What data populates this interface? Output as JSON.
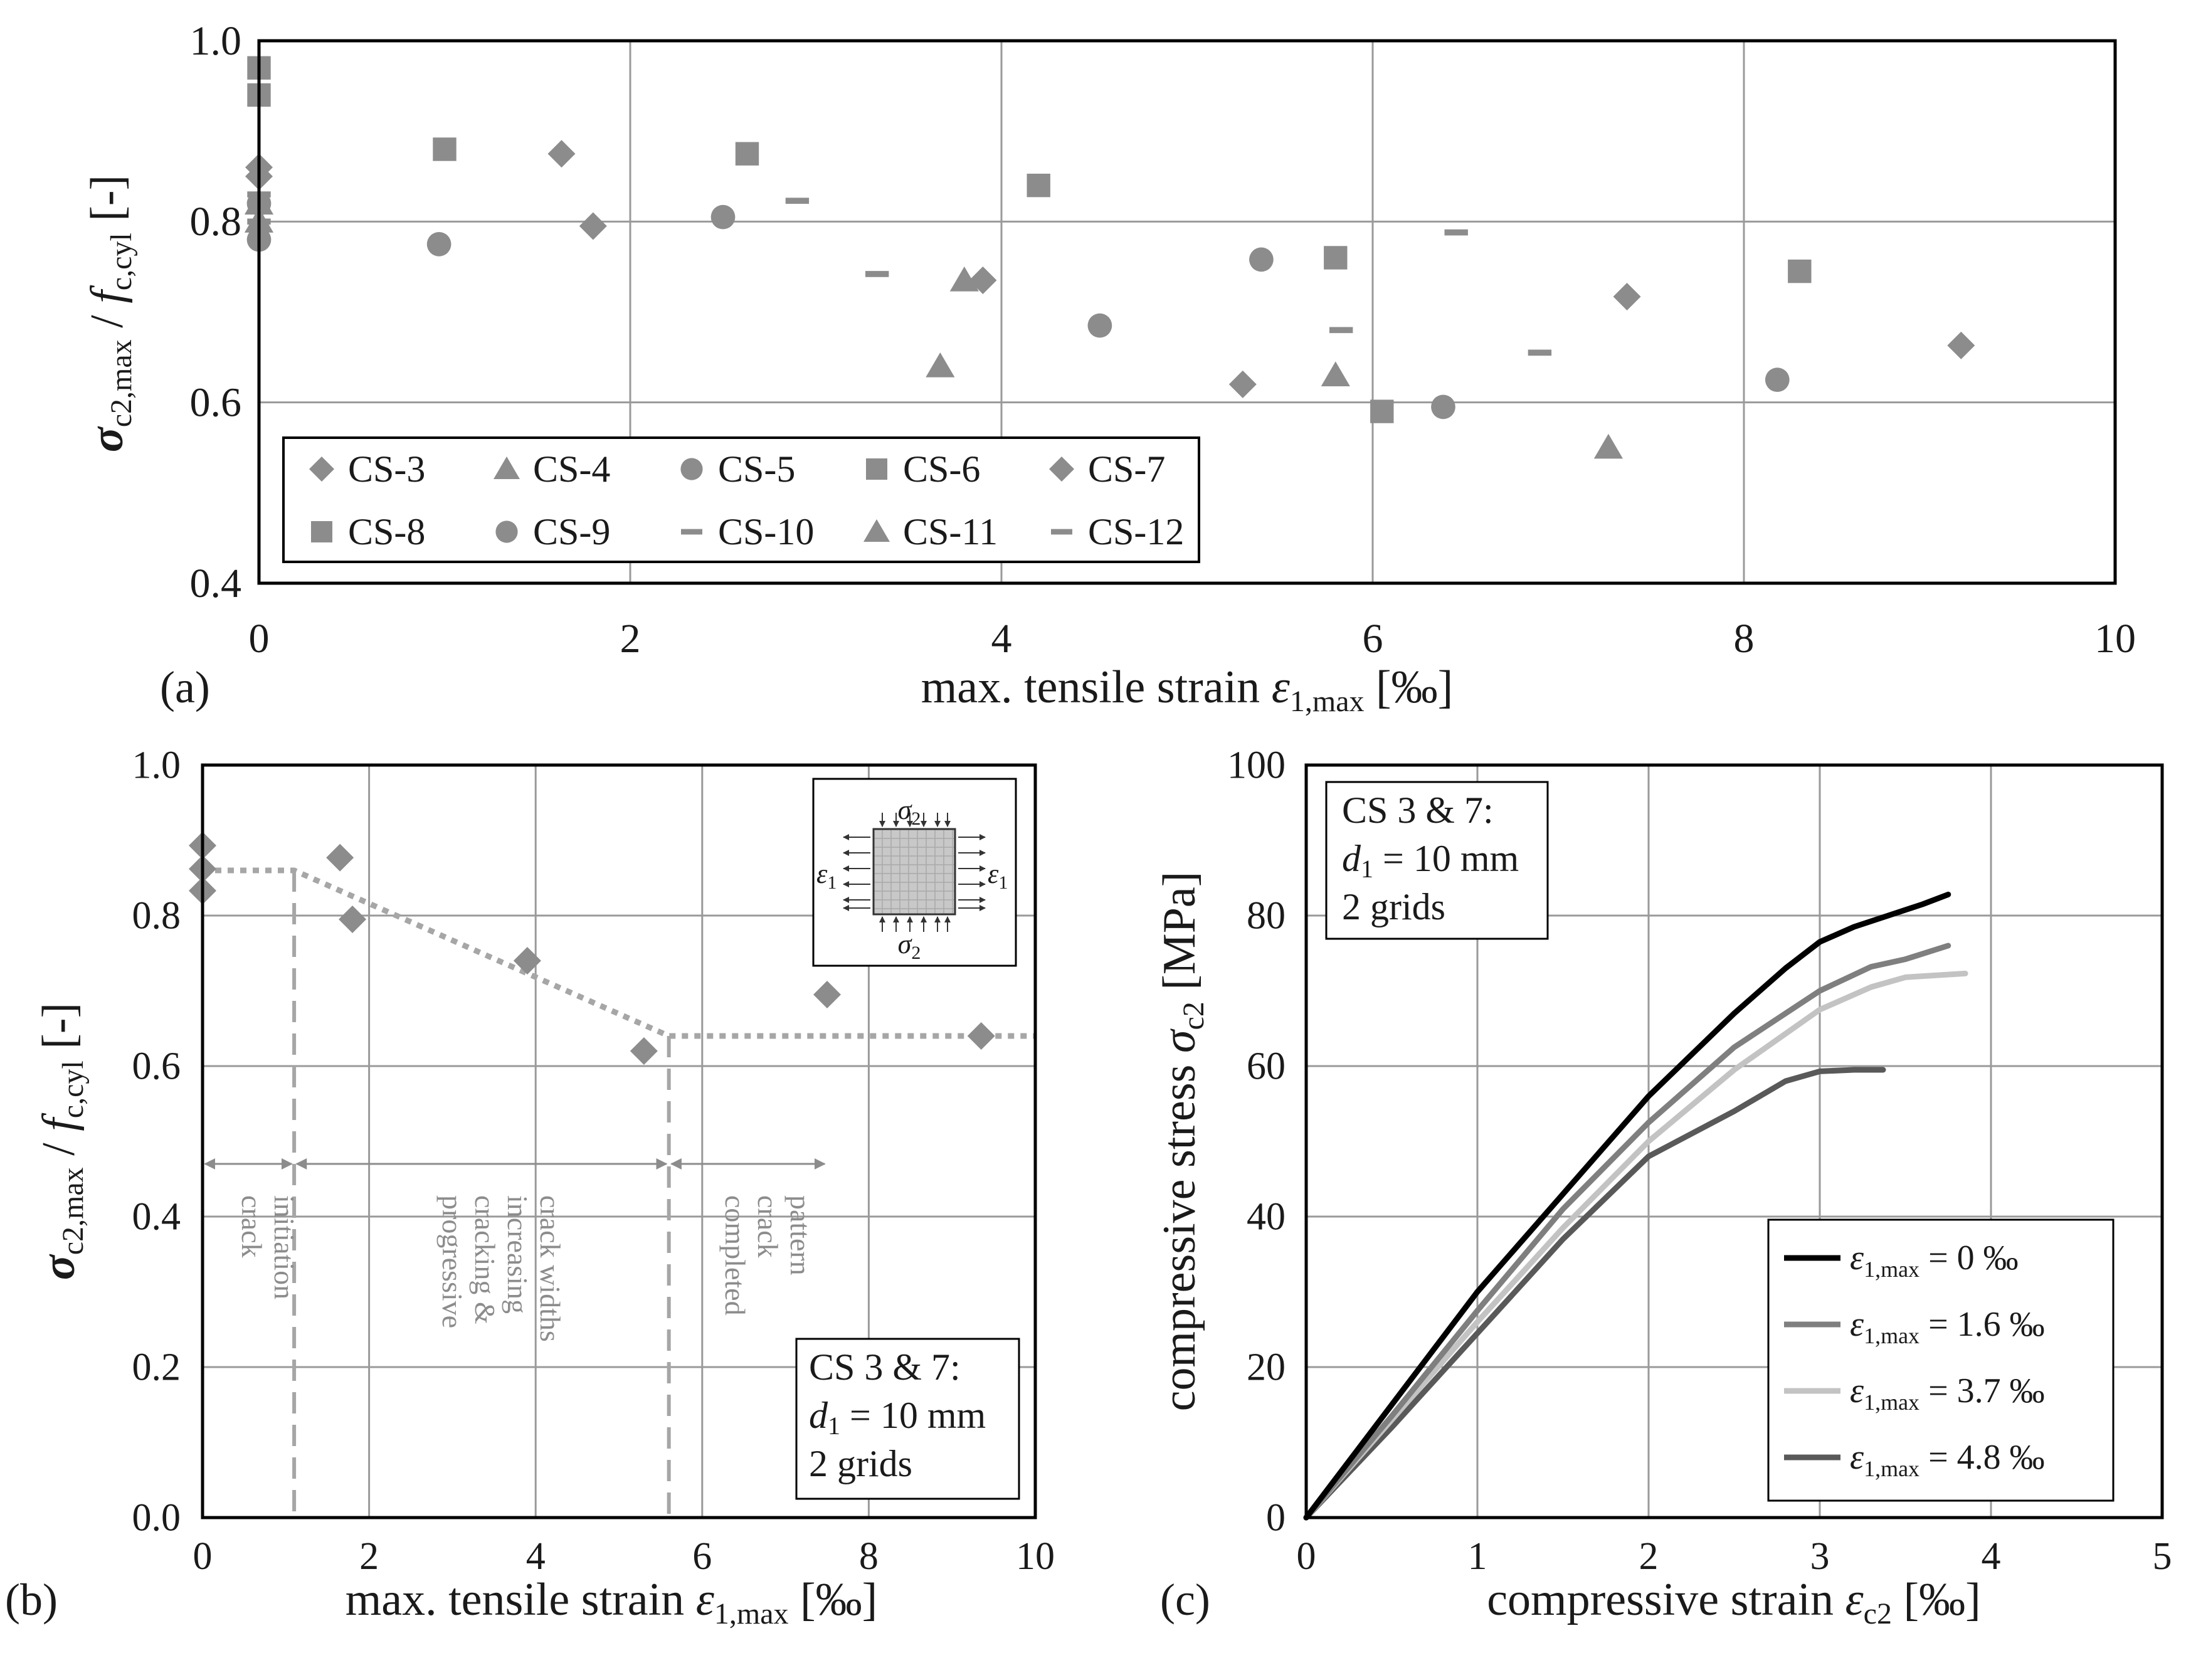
{
  "chart_data": [
    {
      "panel": "(a)",
      "type": "scatter",
      "xlabel": "max. tensile strain",
      "xlabel_symbol": "ε",
      "xlabel_sub": "1,max",
      "xlabel_unit": "[‰]",
      "ylabel": "σ",
      "ylabel_sub1": "c2,max",
      "ylabel_mid": " / ",
      "ylabel_f": "f",
      "ylabel_sub2": "c,cyl",
      "ylabel_unit": " [-]",
      "xlim": [
        0,
        10
      ],
      "ylim": [
        0.4,
        1.0
      ],
      "xticks": [
        "0",
        "2",
        "4",
        "6",
        "8",
        "10"
      ],
      "yticks": [
        "0.4",
        "0.6",
        "0.8",
        "1.0"
      ],
      "grid": true,
      "legend_position": "bottom-left",
      "color": "#8c8c8c",
      "series": [
        {
          "name": "CS-3",
          "marker": "diamond",
          "points": [
            [
              0,
              0.85
            ],
            [
              1.63,
              0.875
            ],
            [
              5.3,
              0.62
            ]
          ]
        },
        {
          "name": "CS-4",
          "marker": "triangle",
          "points": [
            [
              0,
              0.8
            ],
            [
              3.67,
              0.64
            ],
            [
              5.8,
              0.63
            ]
          ]
        },
        {
          "name": "CS-5",
          "marker": "circle",
          "points": [
            [
              0,
              0.78
            ],
            [
              2.5,
              0.805
            ],
            [
              4.53,
              0.685
            ],
            [
              6.38,
              0.595
            ]
          ]
        },
        {
          "name": "CS-6",
          "marker": "square",
          "points": [
            [
              0,
              0.94
            ],
            [
              1.0,
              0.88
            ],
            [
              4.2,
              0.84
            ],
            [
              6.05,
              0.59
            ]
          ]
        },
        {
          "name": "CS-7",
          "marker": "diamond",
          "points": [
            [
              0,
              0.86
            ],
            [
              1.8,
              0.795
            ],
            [
              3.9,
              0.735
            ],
            [
              7.37,
              0.717
            ],
            [
              9.17,
              0.663
            ]
          ]
        },
        {
          "name": "CS-8",
          "marker": "square",
          "points": [
            [
              0,
              0.97
            ],
            [
              2.63,
              0.875
            ],
            [
              5.8,
              0.76
            ],
            [
              8.3,
              0.745
            ]
          ]
        },
        {
          "name": "CS-9",
          "marker": "circle",
          "points": [
            [
              0,
              0.82
            ],
            [
              0.97,
              0.775
            ],
            [
              5.4,
              0.758
            ],
            [
              8.18,
              0.625
            ]
          ]
        },
        {
          "name": "CS-10",
          "marker": "dash",
          "points": [
            [
              0,
              0.83
            ],
            [
              2.9,
              0.823
            ],
            [
              5.83,
              0.68
            ],
            [
              6.45,
              0.788
            ]
          ]
        },
        {
          "name": "CS-11",
          "marker": "triangle",
          "points": [
            [
              0,
              0.82
            ],
            [
              3.8,
              0.735
            ],
            [
              7.27,
              0.55
            ]
          ]
        },
        {
          "name": "CS-12",
          "marker": "dash",
          "points": [
            [
              0,
              0.8
            ],
            [
              3.33,
              0.742
            ],
            [
              6.9,
              0.655
            ]
          ]
        }
      ]
    },
    {
      "panel": "(b)",
      "type": "scatter",
      "xlabel": "max. tensile strain",
      "xlabel_symbol": "ε",
      "xlabel_sub": "1,max",
      "xlabel_unit": "[‰]",
      "ylabel": "σ",
      "ylabel_sub1": "c2,max",
      "ylabel_mid": " / ",
      "ylabel_f": "f",
      "ylabel_sub2": "c,cyl",
      "ylabel_unit": " [-]",
      "xlim": [
        0,
        10
      ],
      "ylim": [
        0.0,
        1.0
      ],
      "xticks": [
        "0",
        "2",
        "4",
        "6",
        "8",
        "10"
      ],
      "yticks": [
        "0.0",
        "0.2",
        "0.4",
        "0.6",
        "0.8",
        "1.0"
      ],
      "grid": true,
      "color": "#8c8c8c",
      "points": [
        [
          0,
          0.893
        ],
        [
          0,
          0.862
        ],
        [
          0,
          0.833
        ],
        [
          1.65,
          0.877
        ],
        [
          1.8,
          0.795
        ],
        [
          3.9,
          0.74
        ],
        [
          5.3,
          0.62
        ],
        [
          7.5,
          0.695
        ],
        [
          9.35,
          0.64
        ]
      ],
      "trend_line": [
        [
          0,
          0.86
        ],
        [
          1.1,
          0.86
        ],
        [
          5.6,
          0.64
        ],
        [
          10,
          0.64
        ]
      ],
      "phase_boundaries": [
        1.1,
        5.6
      ],
      "phase_arrow_y": 0.47,
      "phases": [
        {
          "lines": [
            "crack",
            "initiation"
          ],
          "x": 0.55
        },
        {
          "lines": [
            "progressive",
            "cracking &",
            "increasing",
            "crack widths"
          ],
          "x": 3.35
        },
        {
          "lines": [
            "completed",
            "crack",
            "pattern"
          ],
          "x": 6.55
        }
      ],
      "inset": {
        "sigma": "σ",
        "sigma_sub": "2",
        "eps": "ε",
        "eps_sub": "1"
      },
      "annotation": {
        "line1": "CS 3 & 7:",
        "d": "d",
        "d_sub": "1",
        "line2_rest": " = 10 mm",
        "line3": "2 grids"
      }
    },
    {
      "panel": "(c)",
      "type": "line",
      "xlabel": "compressive strain",
      "xlabel_symbol": "ε",
      "xlabel_sub": "c2",
      "xlabel_unit": "[‰]",
      "ylabel": "compressive stress",
      "ylabel_symbol": "σ",
      "ylabel_sub": "c2",
      "ylabel_unit": "[MPa]",
      "xlim": [
        0,
        5
      ],
      "ylim": [
        0,
        100
      ],
      "xticks": [
        "0",
        "1",
        "2",
        "3",
        "4",
        "5"
      ],
      "yticks": [
        "0",
        "20",
        "40",
        "60",
        "80",
        "100"
      ],
      "grid": true,
      "legend_position": "bottom-right",
      "annotation": {
        "line1": "CS 3 & 7:",
        "d": "d",
        "d_sub": "1",
        "line2_rest": " = 10 mm",
        "line3": "2 grids"
      },
      "series": [
        {
          "label_symbol": "ε",
          "label_sub": "1,max",
          "label_value": " = 0 ‰",
          "color": "#000000",
          "points": [
            [
              0,
              0
            ],
            [
              0.5,
              15
            ],
            [
              1.0,
              30
            ],
            [
              1.5,
              43
            ],
            [
              2.0,
              56
            ],
            [
              2.5,
              67
            ],
            [
              2.8,
              73
            ],
            [
              3.0,
              76.5
            ],
            [
              3.2,
              78.5
            ],
            [
              3.4,
              80
            ],
            [
              3.6,
              81.5
            ],
            [
              3.75,
              82.8
            ]
          ]
        },
        {
          "label_symbol": "ε",
          "label_sub": "1,max",
          "label_value": " = 1.6 ‰",
          "color": "#7f7f7f",
          "points": [
            [
              0,
              0
            ],
            [
              0.5,
              13.5
            ],
            [
              1.0,
              27.5
            ],
            [
              1.5,
              41
            ],
            [
              2.0,
              52.5
            ],
            [
              2.5,
              62.5
            ],
            [
              3.0,
              70
            ],
            [
              3.3,
              73.2
            ],
            [
              3.5,
              74.2
            ],
            [
              3.75,
              76
            ]
          ]
        },
        {
          "label_symbol": "ε",
          "label_sub": "1,max",
          "label_value": " = 3.7 ‰",
          "color": "#c3c3c3",
          "points": [
            [
              0,
              0
            ],
            [
              0.5,
              13
            ],
            [
              1.0,
              26
            ],
            [
              1.5,
              38.5
            ],
            [
              2.0,
              50
            ],
            [
              2.5,
              59.5
            ],
            [
              3.0,
              67.5
            ],
            [
              3.3,
              70.5
            ],
            [
              3.5,
              71.8
            ],
            [
              3.85,
              72.3
            ]
          ]
        },
        {
          "label_symbol": "ε",
          "label_sub": "1,max",
          "label_value": " = 4.8 ‰",
          "color": "#595959",
          "points": [
            [
              0,
              0
            ],
            [
              0.5,
              12
            ],
            [
              1.0,
              24.5
            ],
            [
              1.5,
              37
            ],
            [
              2.0,
              48
            ],
            [
              2.5,
              54
            ],
            [
              2.8,
              58
            ],
            [
              3.0,
              59.3
            ],
            [
              3.2,
              59.5
            ],
            [
              3.37,
              59.5
            ]
          ]
        }
      ]
    }
  ]
}
